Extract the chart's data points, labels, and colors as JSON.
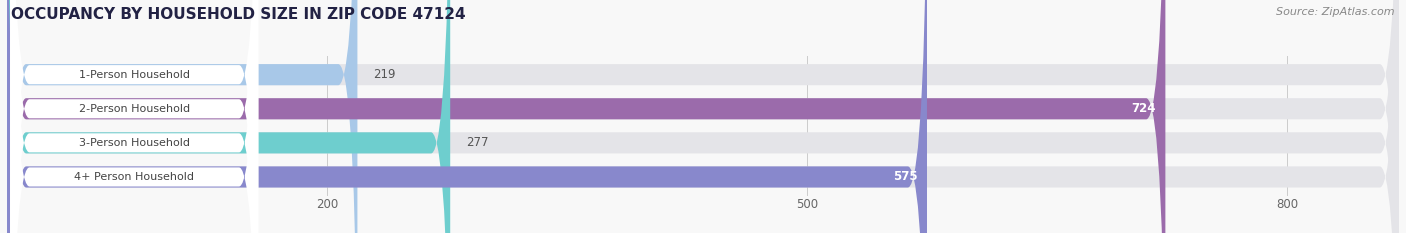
{
  "title": "OCCUPANCY BY HOUSEHOLD SIZE IN ZIP CODE 47124",
  "source": "Source: ZipAtlas.com",
  "categories": [
    "1-Person Household",
    "2-Person Household",
    "3-Person Household",
    "4+ Person Household"
  ],
  "values": [
    219,
    724,
    277,
    575
  ],
  "bar_colors": [
    "#a8c8e8",
    "#9b6bab",
    "#6ecece",
    "#8888cc"
  ],
  "label_colors": [
    "#333333",
    "#ffffff",
    "#333333",
    "#ffffff"
  ],
  "value_inside": [
    false,
    true,
    false,
    true
  ],
  "xlim_max": 870,
  "xticks": [
    200,
    500,
    800
  ],
  "bar_height": 0.62,
  "background_color": "#f8f8f8",
  "title_color": "#222244",
  "title_fontsize": 11.0,
  "source_fontsize": 8.0,
  "label_fontsize": 8.0,
  "value_fontsize": 8.5,
  "tick_fontsize": 8.5,
  "rounding_size": 12
}
